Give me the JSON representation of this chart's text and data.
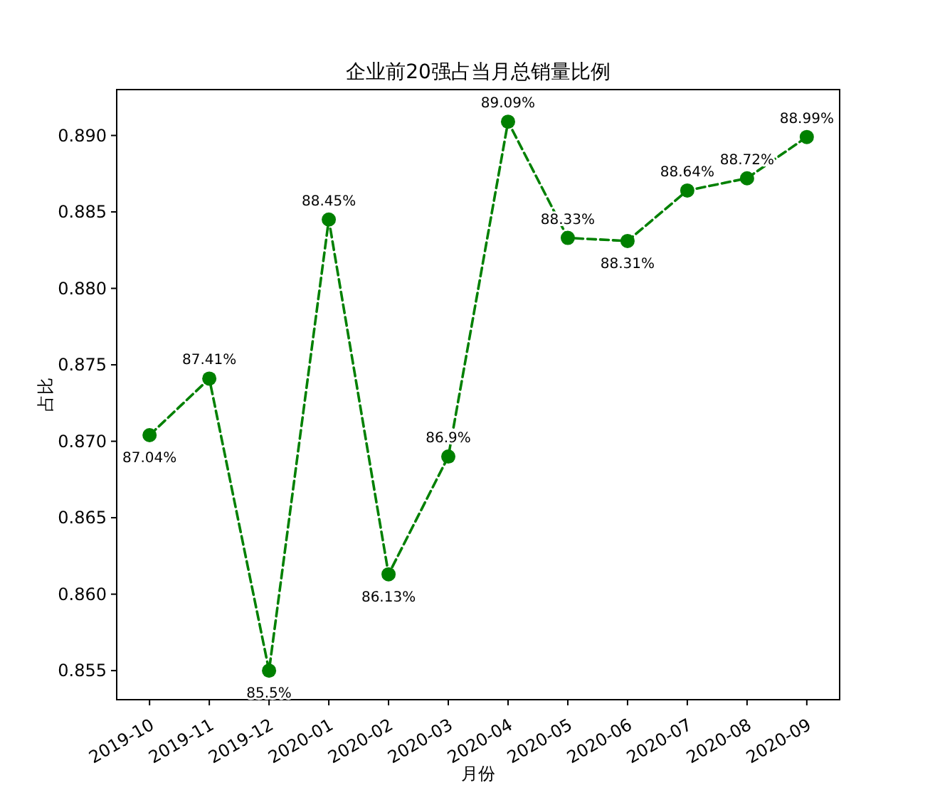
{
  "chart_data": {
    "type": "line",
    "title": "企业前20强占当月总销量比例",
    "xlabel": "月份",
    "ylabel": "占比",
    "categories": [
      "2019-10",
      "2019-11",
      "2019-12",
      "2020-01",
      "2020-02",
      "2020-03",
      "2020-04",
      "2020-05",
      "2020-06",
      "2020-07",
      "2020-08",
      "2020-09"
    ],
    "series": [
      {
        "color": "#008000",
        "values": [
          0.8704,
          0.8741,
          0.855,
          0.8845,
          0.8613,
          0.869,
          0.8909,
          0.8833,
          0.8831,
          0.8864,
          0.8872,
          0.8899
        ],
        "value_labels": [
          "87.04%",
          "87.41%",
          "85.5%",
          "88.45%",
          "86.13%",
          "86.9%",
          "89.09%",
          "88.33%",
          "88.31%",
          "88.64%",
          "88.72%",
          "88.99%"
        ]
      }
    ],
    "ylim": [
      0.8531,
      0.893
    ],
    "yticks": [
      {
        "value": 0.855,
        "label": "0.855"
      },
      {
        "value": 0.86,
        "label": "0.860"
      },
      {
        "value": 0.865,
        "label": "0.865"
      },
      {
        "value": 0.87,
        "label": "0.870"
      },
      {
        "value": 0.875,
        "label": "0.875"
      },
      {
        "value": 0.88,
        "label": "0.880"
      },
      {
        "value": 0.885,
        "label": "0.885"
      },
      {
        "value": 0.89,
        "label": "0.890"
      }
    ],
    "marker": "circle",
    "line_style": "dashed",
    "grid": false
  }
}
